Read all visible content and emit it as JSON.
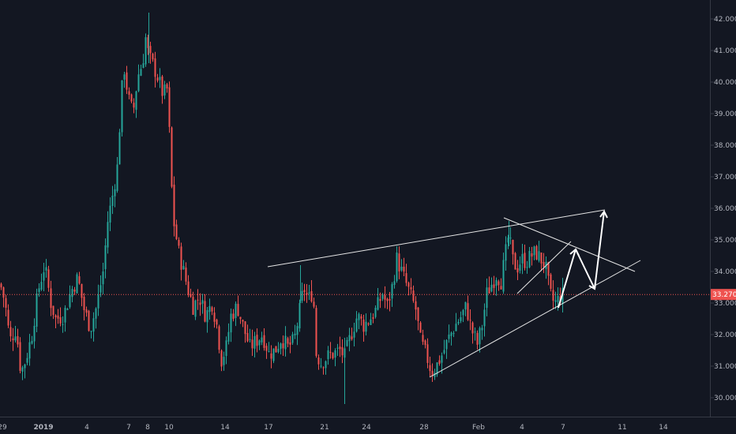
{
  "chart_data": {
    "type": "candlestick",
    "ylim": [
      29.4,
      42.6
    ],
    "y_ticks": [
      "30.000",
      "31.000",
      "32.000",
      "33.000",
      "34.000",
      "35.000",
      "36.000",
      "37.000",
      "38.000",
      "39.000",
      "40.000",
      "41.000",
      "42.000"
    ],
    "x_ticks": [
      "29",
      "2019",
      "4",
      "7",
      "8",
      "10",
      "14",
      "17",
      "21",
      "24",
      "28",
      "Feb",
      "4",
      "7",
      "11",
      "14"
    ],
    "x_ticks_bold": [
      "2019"
    ],
    "last_price": {
      "label": "33.270",
      "value": 33.27
    },
    "colors": {
      "background": "#131722",
      "up": "#26a69a",
      "down": "#ef5350",
      "price_line": "#ef5350",
      "axis_line": "#363a45",
      "drawings": "#e6e6e6"
    },
    "key_points": [
      [
        0,
        33.6
      ],
      [
        6,
        33.0
      ],
      [
        12,
        31.8
      ],
      [
        20,
        32.2
      ],
      [
        26,
        30.8
      ],
      [
        32,
        31.2
      ],
      [
        40,
        32.0
      ],
      [
        48,
        33.4
      ],
      [
        56,
        34.2
      ],
      [
        64,
        33.0
      ],
      [
        70,
        32.5
      ],
      [
        80,
        32.6
      ],
      [
        90,
        33.4
      ],
      [
        98,
        33.8
      ],
      [
        106,
        32.8
      ],
      [
        114,
        32.2
      ],
      [
        122,
        32.9
      ],
      [
        130,
        34.0
      ],
      [
        136,
        35.6
      ],
      [
        142,
        36.4
      ],
      [
        148,
        37.3
      ],
      [
        152,
        39.0
      ],
      [
        156,
        40.6
      ],
      [
        162,
        39.5
      ],
      [
        168,
        39.0
      ],
      [
        174,
        40.2
      ],
      [
        180,
        40.6
      ],
      [
        184,
        41.4
      ],
      [
        188,
        40.8
      ],
      [
        194,
        40.5
      ],
      [
        200,
        40.1
      ],
      [
        206,
        39.6
      ],
      [
        212,
        39.8
      ],
      [
        216,
        37.0
      ],
      [
        220,
        35.5
      ],
      [
        226,
        34.6
      ],
      [
        232,
        34.0
      ],
      [
        238,
        33.4
      ],
      [
        244,
        32.9
      ],
      [
        252,
        33.2
      ],
      [
        260,
        32.6
      ],
      [
        268,
        33.0
      ],
      [
        274,
        32.3
      ],
      [
        280,
        31.2
      ],
      [
        286,
        31.6
      ],
      [
        292,
        32.6
      ],
      [
        300,
        32.9
      ],
      [
        308,
        32.2
      ],
      [
        316,
        31.6
      ],
      [
        324,
        31.8
      ],
      [
        332,
        32.0
      ],
      [
        340,
        31.4
      ],
      [
        348,
        31.5
      ],
      [
        356,
        31.9
      ],
      [
        364,
        31.6
      ],
      [
        372,
        31.8
      ],
      [
        378,
        32.6
      ],
      [
        384,
        33.5
      ],
      [
        390,
        33.1
      ],
      [
        396,
        33.4
      ],
      [
        400,
        31.4
      ],
      [
        406,
        31.1
      ],
      [
        414,
        31.3
      ],
      [
        422,
        31.4
      ],
      [
        430,
        31.5
      ],
      [
        436,
        31.3
      ],
      [
        444,
        32.0
      ],
      [
        452,
        32.6
      ],
      [
        460,
        32.3
      ],
      [
        468,
        32.5
      ],
      [
        476,
        32.8
      ],
      [
        484,
        33.3
      ],
      [
        490,
        32.9
      ],
      [
        496,
        33.5
      ],
      [
        502,
        34.4
      ],
      [
        508,
        34.0
      ],
      [
        514,
        33.6
      ],
      [
        520,
        33.2
      ],
      [
        526,
        32.8
      ],
      [
        532,
        31.8
      ],
      [
        540,
        31.3
      ],
      [
        546,
        30.8
      ],
      [
        552,
        31.0
      ],
      [
        560,
        31.4
      ],
      [
        568,
        31.9
      ],
      [
        576,
        32.3
      ],
      [
        584,
        32.6
      ],
      [
        590,
        32.9
      ],
      [
        596,
        32.2
      ],
      [
        604,
        31.7
      ],
      [
        610,
        32.3
      ],
      [
        616,
        33.3
      ],
      [
        622,
        33.6
      ],
      [
        628,
        33.9
      ],
      [
        634,
        33.7
      ],
      [
        640,
        34.6
      ],
      [
        644,
        35.2
      ],
      [
        648,
        34.4
      ],
      [
        654,
        34.1
      ],
      [
        660,
        34.4
      ],
      [
        666,
        34.3
      ],
      [
        672,
        34.5
      ],
      [
        678,
        34.6
      ],
      [
        684,
        34.4
      ],
      [
        690,
        34.2
      ],
      [
        694,
        33.6
      ],
      [
        698,
        33.1
      ],
      [
        704,
        33.0
      ],
      [
        708,
        33.2
      ],
      [
        714,
        33.27
      ]
    ]
  }
}
